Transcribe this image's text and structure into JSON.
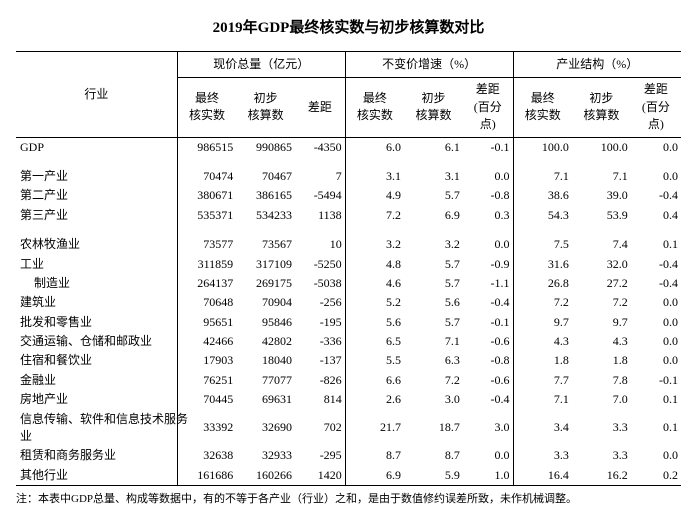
{
  "title": "2019年GDP最终核实数与初步核算数对比",
  "header": {
    "industry": "行业",
    "groups": [
      "现价总量（亿元）",
      "不变价增速（%）",
      "产业结构（%）"
    ],
    "subcols": {
      "final": "最终\n核实数",
      "prelim": "初步\n核算数",
      "diff": "差距",
      "diff_pct": "差距\n(百分\n点)"
    }
  },
  "rows": [
    {
      "label": "GDP",
      "indent": 0,
      "a1": "986515",
      "a2": "990865",
      "a3": "-4350",
      "b1": "6.0",
      "b2": "6.1",
      "b3": "-0.1",
      "c1": "100.0",
      "c2": "100.0",
      "c3": "0.0",
      "spacerAfter": true
    },
    {
      "label": "第一产业",
      "indent": 0,
      "a1": "70474",
      "a2": "70467",
      "a3": "7",
      "b1": "3.1",
      "b2": "3.1",
      "b3": "0.0",
      "c1": "7.1",
      "c2": "7.1",
      "c3": "0.0"
    },
    {
      "label": "第二产业",
      "indent": 0,
      "a1": "380671",
      "a2": "386165",
      "a3": "-5494",
      "b1": "4.9",
      "b2": "5.7",
      "b3": "-0.8",
      "c1": "38.6",
      "c2": "39.0",
      "c3": "-0.4"
    },
    {
      "label": "第三产业",
      "indent": 0,
      "a1": "535371",
      "a2": "534233",
      "a3": "1138",
      "b1": "7.2",
      "b2": "6.9",
      "b3": "0.3",
      "c1": "54.3",
      "c2": "53.9",
      "c3": "0.4",
      "spacerAfter": true
    },
    {
      "label": "农林牧渔业",
      "indent": 0,
      "a1": "73577",
      "a2": "73567",
      "a3": "10",
      "b1": "3.2",
      "b2": "3.2",
      "b3": "0.0",
      "c1": "7.5",
      "c2": "7.4",
      "c3": "0.1"
    },
    {
      "label": "工业",
      "indent": 0,
      "a1": "311859",
      "a2": "317109",
      "a3": "-5250",
      "b1": "4.8",
      "b2": "5.7",
      "b3": "-0.9",
      "c1": "31.6",
      "c2": "32.0",
      "c3": "-0.4"
    },
    {
      "label": "制造业",
      "indent": 2,
      "a1": "264137",
      "a2": "269175",
      "a3": "-5038",
      "b1": "4.6",
      "b2": "5.7",
      "b3": "-1.1",
      "c1": "26.8",
      "c2": "27.2",
      "c3": "-0.4"
    },
    {
      "label": "建筑业",
      "indent": 0,
      "a1": "70648",
      "a2": "70904",
      "a3": "-256",
      "b1": "5.2",
      "b2": "5.6",
      "b3": "-0.4",
      "c1": "7.2",
      "c2": "7.2",
      "c3": "0.0"
    },
    {
      "label": "批发和零售业",
      "indent": 0,
      "a1": "95651",
      "a2": "95846",
      "a3": "-195",
      "b1": "5.6",
      "b2": "5.7",
      "b3": "-0.1",
      "c1": "9.7",
      "c2": "9.7",
      "c3": "0.0"
    },
    {
      "label": "交通运输、仓储和邮政业",
      "indent": 0,
      "a1": "42466",
      "a2": "42802",
      "a3": "-336",
      "b1": "6.5",
      "b2": "7.1",
      "b3": "-0.6",
      "c1": "4.3",
      "c2": "4.3",
      "c3": "0.0"
    },
    {
      "label": "住宿和餐饮业",
      "indent": 0,
      "a1": "17903",
      "a2": "18040",
      "a3": "-137",
      "b1": "5.5",
      "b2": "6.3",
      "b3": "-0.8",
      "c1": "1.8",
      "c2": "1.8",
      "c3": "0.0"
    },
    {
      "label": "金融业",
      "indent": 0,
      "a1": "76251",
      "a2": "77077",
      "a3": "-826",
      "b1": "6.6",
      "b2": "7.2",
      "b3": "-0.6",
      "c1": "7.7",
      "c2": "7.8",
      "c3": "-0.1"
    },
    {
      "label": "房地产业",
      "indent": 0,
      "a1": "70445",
      "a2": "69631",
      "a3": "814",
      "b1": "2.6",
      "b2": "3.0",
      "b3": "-0.4",
      "c1": "7.1",
      "c2": "7.0",
      "c3": "0.1"
    },
    {
      "label": "信息传输、软件和信息技术服务\n业",
      "indent": 0,
      "a1": "33392",
      "a2": "32690",
      "a3": "702",
      "b1": "21.7",
      "b2": "18.7",
      "b3": "3.0",
      "c1": "3.4",
      "c2": "3.3",
      "c3": "0.1"
    },
    {
      "label": "租赁和商务服务业",
      "indent": 0,
      "a1": "32638",
      "a2": "32933",
      "a3": "-295",
      "b1": "8.7",
      "b2": "8.7",
      "b3": "0.0",
      "c1": "3.3",
      "c2": "3.3",
      "c3": "0.0"
    },
    {
      "label": "其他行业",
      "indent": 0,
      "a1": "161686",
      "a2": "160266",
      "a3": "1420",
      "b1": "6.9",
      "b2": "5.9",
      "b3": "1.0",
      "c1": "16.4",
      "c2": "16.2",
      "c3": "0.2",
      "last": true
    }
  ],
  "footnote": "注：本表中GDP总量、构成等数据中，有的不等于各产业（行业）之和，是由于数值修约误差所致，未作机械调整。"
}
